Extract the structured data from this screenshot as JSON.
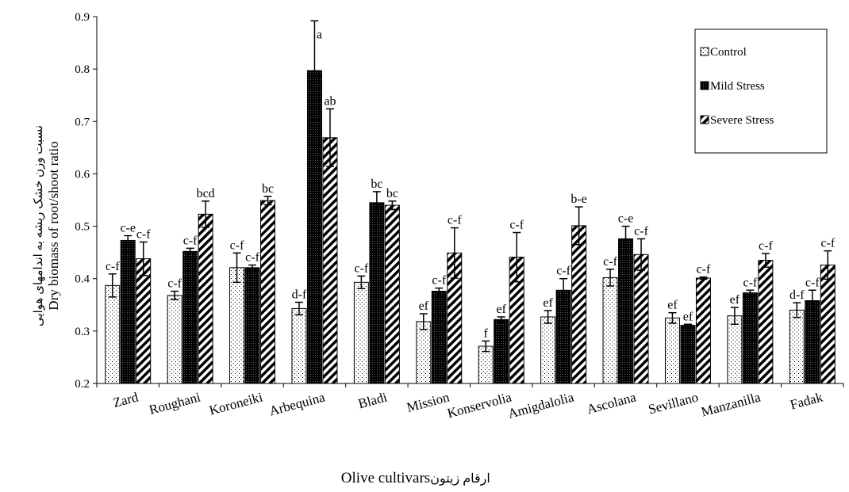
{
  "chart_data": {
    "type": "bar",
    "xlabel": "Olive cultivars",
    "xlabel_fa": "ارقام زیتون",
    "ylabel": "Dry biomass of root/shoot ratio",
    "ylabel_fa": "نسبت وزن خشک ریشه به اندامهای هوایی",
    "ylim": [
      0.2,
      0.9
    ],
    "yticks": [
      "0.2",
      "0.3",
      "0.4",
      "0.5",
      "0.6",
      "0.7",
      "0.8",
      "0.9"
    ],
    "grid": false,
    "legend_position": "top-right",
    "categories": [
      "Zard",
      "Roughani",
      "Koroneiki",
      "Arbequina",
      "Bladi",
      "Mission",
      "Konservolia",
      "Amigdalolia",
      "Ascolana",
      "Sevillano",
      "Manzanilla",
      "Fadak"
    ],
    "series": [
      {
        "name": "Control",
        "pattern": "dots",
        "values": [
          0.387,
          0.368,
          0.421,
          0.343,
          0.393,
          0.318,
          0.271,
          0.327,
          0.402,
          0.325,
          0.329,
          0.34
        ],
        "errors": [
          0.022,
          0.008,
          0.028,
          0.012,
          0.012,
          0.015,
          0.01,
          0.012,
          0.016,
          0.01,
          0.016,
          0.014
        ],
        "labels": [
          "c-f",
          "c-f",
          "c-f",
          "d-f",
          "c-f",
          "ef",
          "f",
          "ef",
          "c-f",
          "ef",
          "ef",
          "d-f"
        ]
      },
      {
        "name": "Mild Stress",
        "pattern": "dark",
        "values": [
          0.473,
          0.452,
          0.421,
          0.797,
          0.545,
          0.376,
          0.322,
          0.378,
          0.476,
          0.311,
          0.373,
          0.358
        ],
        "errors": [
          0.009,
          0.006,
          0.005,
          0.095,
          0.021,
          0.006,
          0.005,
          0.022,
          0.024,
          0.002,
          0.005,
          0.02
        ],
        "labels": [
          "c-e",
          "c-f",
          "c-f",
          "a",
          "bc",
          "c-f",
          "ef",
          "c-f",
          "c-e",
          "ef",
          "c-f",
          "c-f"
        ]
      },
      {
        "name": "Severe Stress",
        "pattern": "hatch",
        "values": [
          0.438,
          0.523,
          0.549,
          0.669,
          0.54,
          0.449,
          0.441,
          0.501,
          0.446,
          0.401,
          0.435,
          0.426
        ],
        "errors": [
          0.032,
          0.025,
          0.008,
          0.055,
          0.008,
          0.048,
          0.047,
          0.036,
          0.03,
          0.002,
          0.013,
          0.027
        ],
        "labels": [
          "c-f",
          "bcd",
          "bc",
          "ab",
          "bc",
          "c-f",
          "c-f",
          "b-e",
          "c-f",
          "c-f",
          "c-f",
          "c-f"
        ]
      }
    ]
  }
}
